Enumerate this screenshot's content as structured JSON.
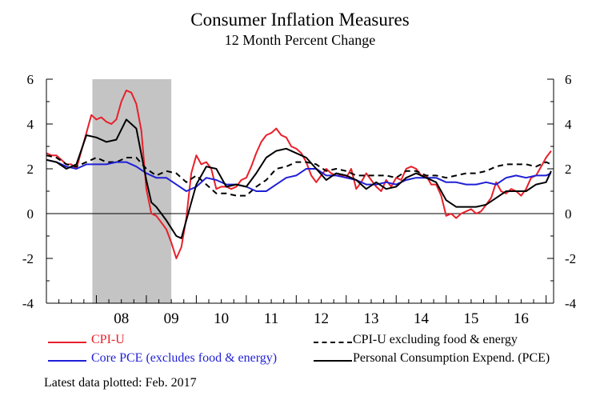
{
  "chart_data": {
    "type": "line",
    "title": "Consumer Inflation Measures",
    "subtitle": "12 Month Percent Change",
    "xlabel": "",
    "ylabel": "",
    "x_range": [
      2007.0,
      2017.15
    ],
    "ylim": [
      -4,
      6
    ],
    "y_ticks": [
      -4,
      -2,
      0,
      2,
      4,
      6
    ],
    "x_tick_labels": [
      {
        "label": "08",
        "x": 2008.5
      },
      {
        "label": "09",
        "x": 2009.5
      },
      {
        "label": "10",
        "x": 2010.5
      },
      {
        "label": "11",
        "x": 2011.5
      },
      {
        "label": "12",
        "x": 2012.5
      },
      {
        "label": "13",
        "x": 2013.5
      },
      {
        "label": "14",
        "x": 2014.5
      },
      {
        "label": "15",
        "x": 2015.5
      },
      {
        "label": "16",
        "x": 2016.5
      }
    ],
    "recession": {
      "start": 2007.92,
      "end": 2009.5
    },
    "series": [
      {
        "name": "CPI-U",
        "color": "#e8202a",
        "dash": "solid",
        "points": [
          [
            2007.0,
            2.7
          ],
          [
            2007.1,
            2.6
          ],
          [
            2007.2,
            2.6
          ],
          [
            2007.3,
            2.4
          ],
          [
            2007.4,
            2.2
          ],
          [
            2007.5,
            2.2
          ],
          [
            2007.6,
            2.0
          ],
          [
            2007.7,
            2.8
          ],
          [
            2007.8,
            3.6
          ],
          [
            2007.9,
            4.4
          ],
          [
            2008.0,
            4.2
          ],
          [
            2008.1,
            4.3
          ],
          [
            2008.2,
            4.1
          ],
          [
            2008.3,
            4.0
          ],
          [
            2008.4,
            4.2
          ],
          [
            2008.5,
            5.0
          ],
          [
            2008.6,
            5.5
          ],
          [
            2008.7,
            5.4
          ],
          [
            2008.8,
            4.9
          ],
          [
            2008.9,
            3.7
          ],
          [
            2009.0,
            1.1
          ],
          [
            2009.1,
            0.0
          ],
          [
            2009.2,
            -0.1
          ],
          [
            2009.3,
            -0.4
          ],
          [
            2009.4,
            -0.7
          ],
          [
            2009.5,
            -1.3
          ],
          [
            2009.6,
            -2.0
          ],
          [
            2009.7,
            -1.5
          ],
          [
            2009.8,
            -0.2
          ],
          [
            2009.9,
            1.8
          ],
          [
            2010.0,
            2.6
          ],
          [
            2010.1,
            2.2
          ],
          [
            2010.2,
            2.3
          ],
          [
            2010.3,
            2.0
          ],
          [
            2010.4,
            1.1
          ],
          [
            2010.5,
            1.2
          ],
          [
            2010.6,
            1.2
          ],
          [
            2010.7,
            1.1
          ],
          [
            2010.8,
            1.2
          ],
          [
            2010.9,
            1.5
          ],
          [
            2011.0,
            1.6
          ],
          [
            2011.1,
            2.1
          ],
          [
            2011.2,
            2.7
          ],
          [
            2011.3,
            3.2
          ],
          [
            2011.4,
            3.5
          ],
          [
            2011.5,
            3.6
          ],
          [
            2011.6,
            3.8
          ],
          [
            2011.7,
            3.5
          ],
          [
            2011.8,
            3.4
          ],
          [
            2011.9,
            3.0
          ],
          [
            2012.0,
            2.9
          ],
          [
            2012.1,
            2.7
          ],
          [
            2012.2,
            2.3
          ],
          [
            2012.3,
            1.7
          ],
          [
            2012.4,
            1.4
          ],
          [
            2012.5,
            1.7
          ],
          [
            2012.6,
            2.0
          ],
          [
            2012.7,
            1.8
          ],
          [
            2012.8,
            1.7
          ],
          [
            2012.9,
            1.7
          ],
          [
            2013.0,
            1.6
          ],
          [
            2013.1,
            2.0
          ],
          [
            2013.2,
            1.1
          ],
          [
            2013.3,
            1.4
          ],
          [
            2013.4,
            1.8
          ],
          [
            2013.5,
            1.5
          ],
          [
            2013.6,
            1.2
          ],
          [
            2013.7,
            1.0
          ],
          [
            2013.8,
            1.5
          ],
          [
            2013.9,
            1.2
          ],
          [
            2014.0,
            1.6
          ],
          [
            2014.1,
            1.5
          ],
          [
            2014.2,
            2.0
          ],
          [
            2014.3,
            2.1
          ],
          [
            2014.4,
            2.0
          ],
          [
            2014.5,
            1.7
          ],
          [
            2014.6,
            1.7
          ],
          [
            2014.7,
            1.3
          ],
          [
            2014.8,
            1.3
          ],
          [
            2014.9,
            0.8
          ],
          [
            2015.0,
            -0.1
          ],
          [
            2015.1,
            0.0
          ],
          [
            2015.2,
            -0.2
          ],
          [
            2015.3,
            0.0
          ],
          [
            2015.4,
            0.1
          ],
          [
            2015.5,
            0.2
          ],
          [
            2015.6,
            0.0
          ],
          [
            2015.7,
            0.1
          ],
          [
            2015.8,
            0.4
          ],
          [
            2015.9,
            0.7
          ],
          [
            2016.0,
            1.4
          ],
          [
            2016.1,
            1.0
          ],
          [
            2016.2,
            0.9
          ],
          [
            2016.3,
            1.1
          ],
          [
            2016.4,
            1.0
          ],
          [
            2016.5,
            0.8
          ],
          [
            2016.6,
            1.1
          ],
          [
            2016.7,
            1.6
          ],
          [
            2016.8,
            1.7
          ],
          [
            2016.9,
            2.1
          ],
          [
            2017.0,
            2.5
          ],
          [
            2017.1,
            2.8
          ]
        ]
      },
      {
        "name": "CPI-U excluding food & energy",
        "color": "#000000",
        "dash": "dashed",
        "points": [
          [
            2007.0,
            2.6
          ],
          [
            2007.2,
            2.5
          ],
          [
            2007.4,
            2.2
          ],
          [
            2007.6,
            2.1
          ],
          [
            2007.8,
            2.3
          ],
          [
            2008.0,
            2.5
          ],
          [
            2008.2,
            2.3
          ],
          [
            2008.4,
            2.3
          ],
          [
            2008.6,
            2.5
          ],
          [
            2008.8,
            2.5
          ],
          [
            2009.0,
            2.0
          ],
          [
            2009.2,
            1.7
          ],
          [
            2009.4,
            1.9
          ],
          [
            2009.6,
            1.8
          ],
          [
            2009.8,
            1.4
          ],
          [
            2010.0,
            1.7
          ],
          [
            2010.2,
            1.3
          ],
          [
            2010.4,
            0.9
          ],
          [
            2010.6,
            0.9
          ],
          [
            2010.8,
            0.8
          ],
          [
            2011.0,
            0.8
          ],
          [
            2011.2,
            1.2
          ],
          [
            2011.4,
            1.5
          ],
          [
            2011.6,
            2.0
          ],
          [
            2011.8,
            2.1
          ],
          [
            2012.0,
            2.3
          ],
          [
            2012.2,
            2.3
          ],
          [
            2012.4,
            2.2
          ],
          [
            2012.6,
            1.9
          ],
          [
            2012.8,
            2.0
          ],
          [
            2013.0,
            1.9
          ],
          [
            2013.2,
            1.7
          ],
          [
            2013.4,
            1.7
          ],
          [
            2013.6,
            1.7
          ],
          [
            2013.8,
            1.7
          ],
          [
            2014.0,
            1.6
          ],
          [
            2014.2,
            1.9
          ],
          [
            2014.4,
            1.9
          ],
          [
            2014.6,
            1.7
          ],
          [
            2014.8,
            1.7
          ],
          [
            2015.0,
            1.6
          ],
          [
            2015.2,
            1.7
          ],
          [
            2015.4,
            1.8
          ],
          [
            2015.6,
            1.8
          ],
          [
            2015.8,
            1.9
          ],
          [
            2016.0,
            2.1
          ],
          [
            2016.2,
            2.2
          ],
          [
            2016.4,
            2.2
          ],
          [
            2016.6,
            2.2
          ],
          [
            2016.8,
            2.1
          ],
          [
            2017.0,
            2.3
          ],
          [
            2017.1,
            2.2
          ]
        ]
      },
      {
        "name": "Core PCE (excludes food & energy)",
        "color": "#1f1fd6",
        "dash": "solid",
        "points": [
          [
            2007.0,
            2.4
          ],
          [
            2007.2,
            2.3
          ],
          [
            2007.4,
            2.1
          ],
          [
            2007.6,
            2.0
          ],
          [
            2007.8,
            2.2
          ],
          [
            2008.0,
            2.2
          ],
          [
            2008.2,
            2.2
          ],
          [
            2008.4,
            2.3
          ],
          [
            2008.6,
            2.3
          ],
          [
            2008.8,
            2.1
          ],
          [
            2009.0,
            1.8
          ],
          [
            2009.2,
            1.6
          ],
          [
            2009.4,
            1.6
          ],
          [
            2009.6,
            1.3
          ],
          [
            2009.8,
            1.0
          ],
          [
            2010.0,
            1.2
          ],
          [
            2010.2,
            1.6
          ],
          [
            2010.4,
            1.5
          ],
          [
            2010.6,
            1.3
          ],
          [
            2010.8,
            1.3
          ],
          [
            2011.0,
            1.2
          ],
          [
            2011.2,
            1.0
          ],
          [
            2011.4,
            1.0
          ],
          [
            2011.6,
            1.3
          ],
          [
            2011.8,
            1.6
          ],
          [
            2012.0,
            1.7
          ],
          [
            2012.2,
            2.0
          ],
          [
            2012.4,
            2.0
          ],
          [
            2012.6,
            1.7
          ],
          [
            2012.8,
            1.7
          ],
          [
            2013.0,
            1.6
          ],
          [
            2013.2,
            1.5
          ],
          [
            2013.4,
            1.3
          ],
          [
            2013.6,
            1.3
          ],
          [
            2013.8,
            1.4
          ],
          [
            2014.0,
            1.3
          ],
          [
            2014.2,
            1.5
          ],
          [
            2014.4,
            1.6
          ],
          [
            2014.6,
            1.6
          ],
          [
            2014.8,
            1.6
          ],
          [
            2015.0,
            1.4
          ],
          [
            2015.2,
            1.4
          ],
          [
            2015.4,
            1.3
          ],
          [
            2015.6,
            1.3
          ],
          [
            2015.8,
            1.4
          ],
          [
            2016.0,
            1.3
          ],
          [
            2016.2,
            1.6
          ],
          [
            2016.4,
            1.7
          ],
          [
            2016.6,
            1.6
          ],
          [
            2016.8,
            1.7
          ],
          [
            2017.0,
            1.7
          ],
          [
            2017.1,
            1.8
          ]
        ]
      },
      {
        "name": "Personal Consumption Expend. (PCE)",
        "color": "#000000",
        "dash": "solid",
        "points": [
          [
            2007.0,
            2.4
          ],
          [
            2007.2,
            2.3
          ],
          [
            2007.4,
            2.0
          ],
          [
            2007.6,
            2.2
          ],
          [
            2007.8,
            3.5
          ],
          [
            2008.0,
            3.4
          ],
          [
            2008.2,
            3.2
          ],
          [
            2008.4,
            3.3
          ],
          [
            2008.6,
            4.2
          ],
          [
            2008.8,
            3.8
          ],
          [
            2009.0,
            1.5
          ],
          [
            2009.1,
            0.5
          ],
          [
            2009.2,
            0.3
          ],
          [
            2009.4,
            -0.3
          ],
          [
            2009.6,
            -1.0
          ],
          [
            2009.7,
            -1.1
          ],
          [
            2009.8,
            -0.3
          ],
          [
            2010.0,
            1.3
          ],
          [
            2010.2,
            2.1
          ],
          [
            2010.4,
            2.0
          ],
          [
            2010.6,
            1.2
          ],
          [
            2010.8,
            1.3
          ],
          [
            2011.0,
            1.2
          ],
          [
            2011.2,
            1.8
          ],
          [
            2011.4,
            2.5
          ],
          [
            2011.6,
            2.8
          ],
          [
            2011.8,
            2.9
          ],
          [
            2012.0,
            2.7
          ],
          [
            2012.2,
            2.5
          ],
          [
            2012.4,
            2.0
          ],
          [
            2012.6,
            1.5
          ],
          [
            2012.8,
            1.8
          ],
          [
            2013.0,
            1.7
          ],
          [
            2013.2,
            1.5
          ],
          [
            2013.4,
            1.1
          ],
          [
            2013.6,
            1.4
          ],
          [
            2013.8,
            1.1
          ],
          [
            2014.0,
            1.2
          ],
          [
            2014.2,
            1.6
          ],
          [
            2014.4,
            1.8
          ],
          [
            2014.6,
            1.6
          ],
          [
            2014.8,
            1.4
          ],
          [
            2015.0,
            0.6
          ],
          [
            2015.2,
            0.3
          ],
          [
            2015.4,
            0.3
          ],
          [
            2015.6,
            0.3
          ],
          [
            2015.8,
            0.4
          ],
          [
            2016.0,
            0.7
          ],
          [
            2016.2,
            1.0
          ],
          [
            2016.4,
            1.0
          ],
          [
            2016.6,
            1.0
          ],
          [
            2016.8,
            1.3
          ],
          [
            2017.0,
            1.4
          ],
          [
            2017.1,
            1.9
          ]
        ]
      }
    ],
    "legend": [
      {
        "label": "CPI-U",
        "color": "#e8202a",
        "dash": "solid"
      },
      {
        "label": "CPI-U excluding food & energy",
        "color": "#000000",
        "dash": "dashed"
      },
      {
        "label": "Core PCE (excludes food & energy)",
        "color": "#1f1fd6",
        "dash": "solid"
      },
      {
        "label": "Personal Consumption Expend. (PCE)",
        "color": "#000000",
        "dash": "solid"
      }
    ],
    "footnote": "Latest data plotted: Feb. 2017",
    "legend_placement": "bottom"
  }
}
